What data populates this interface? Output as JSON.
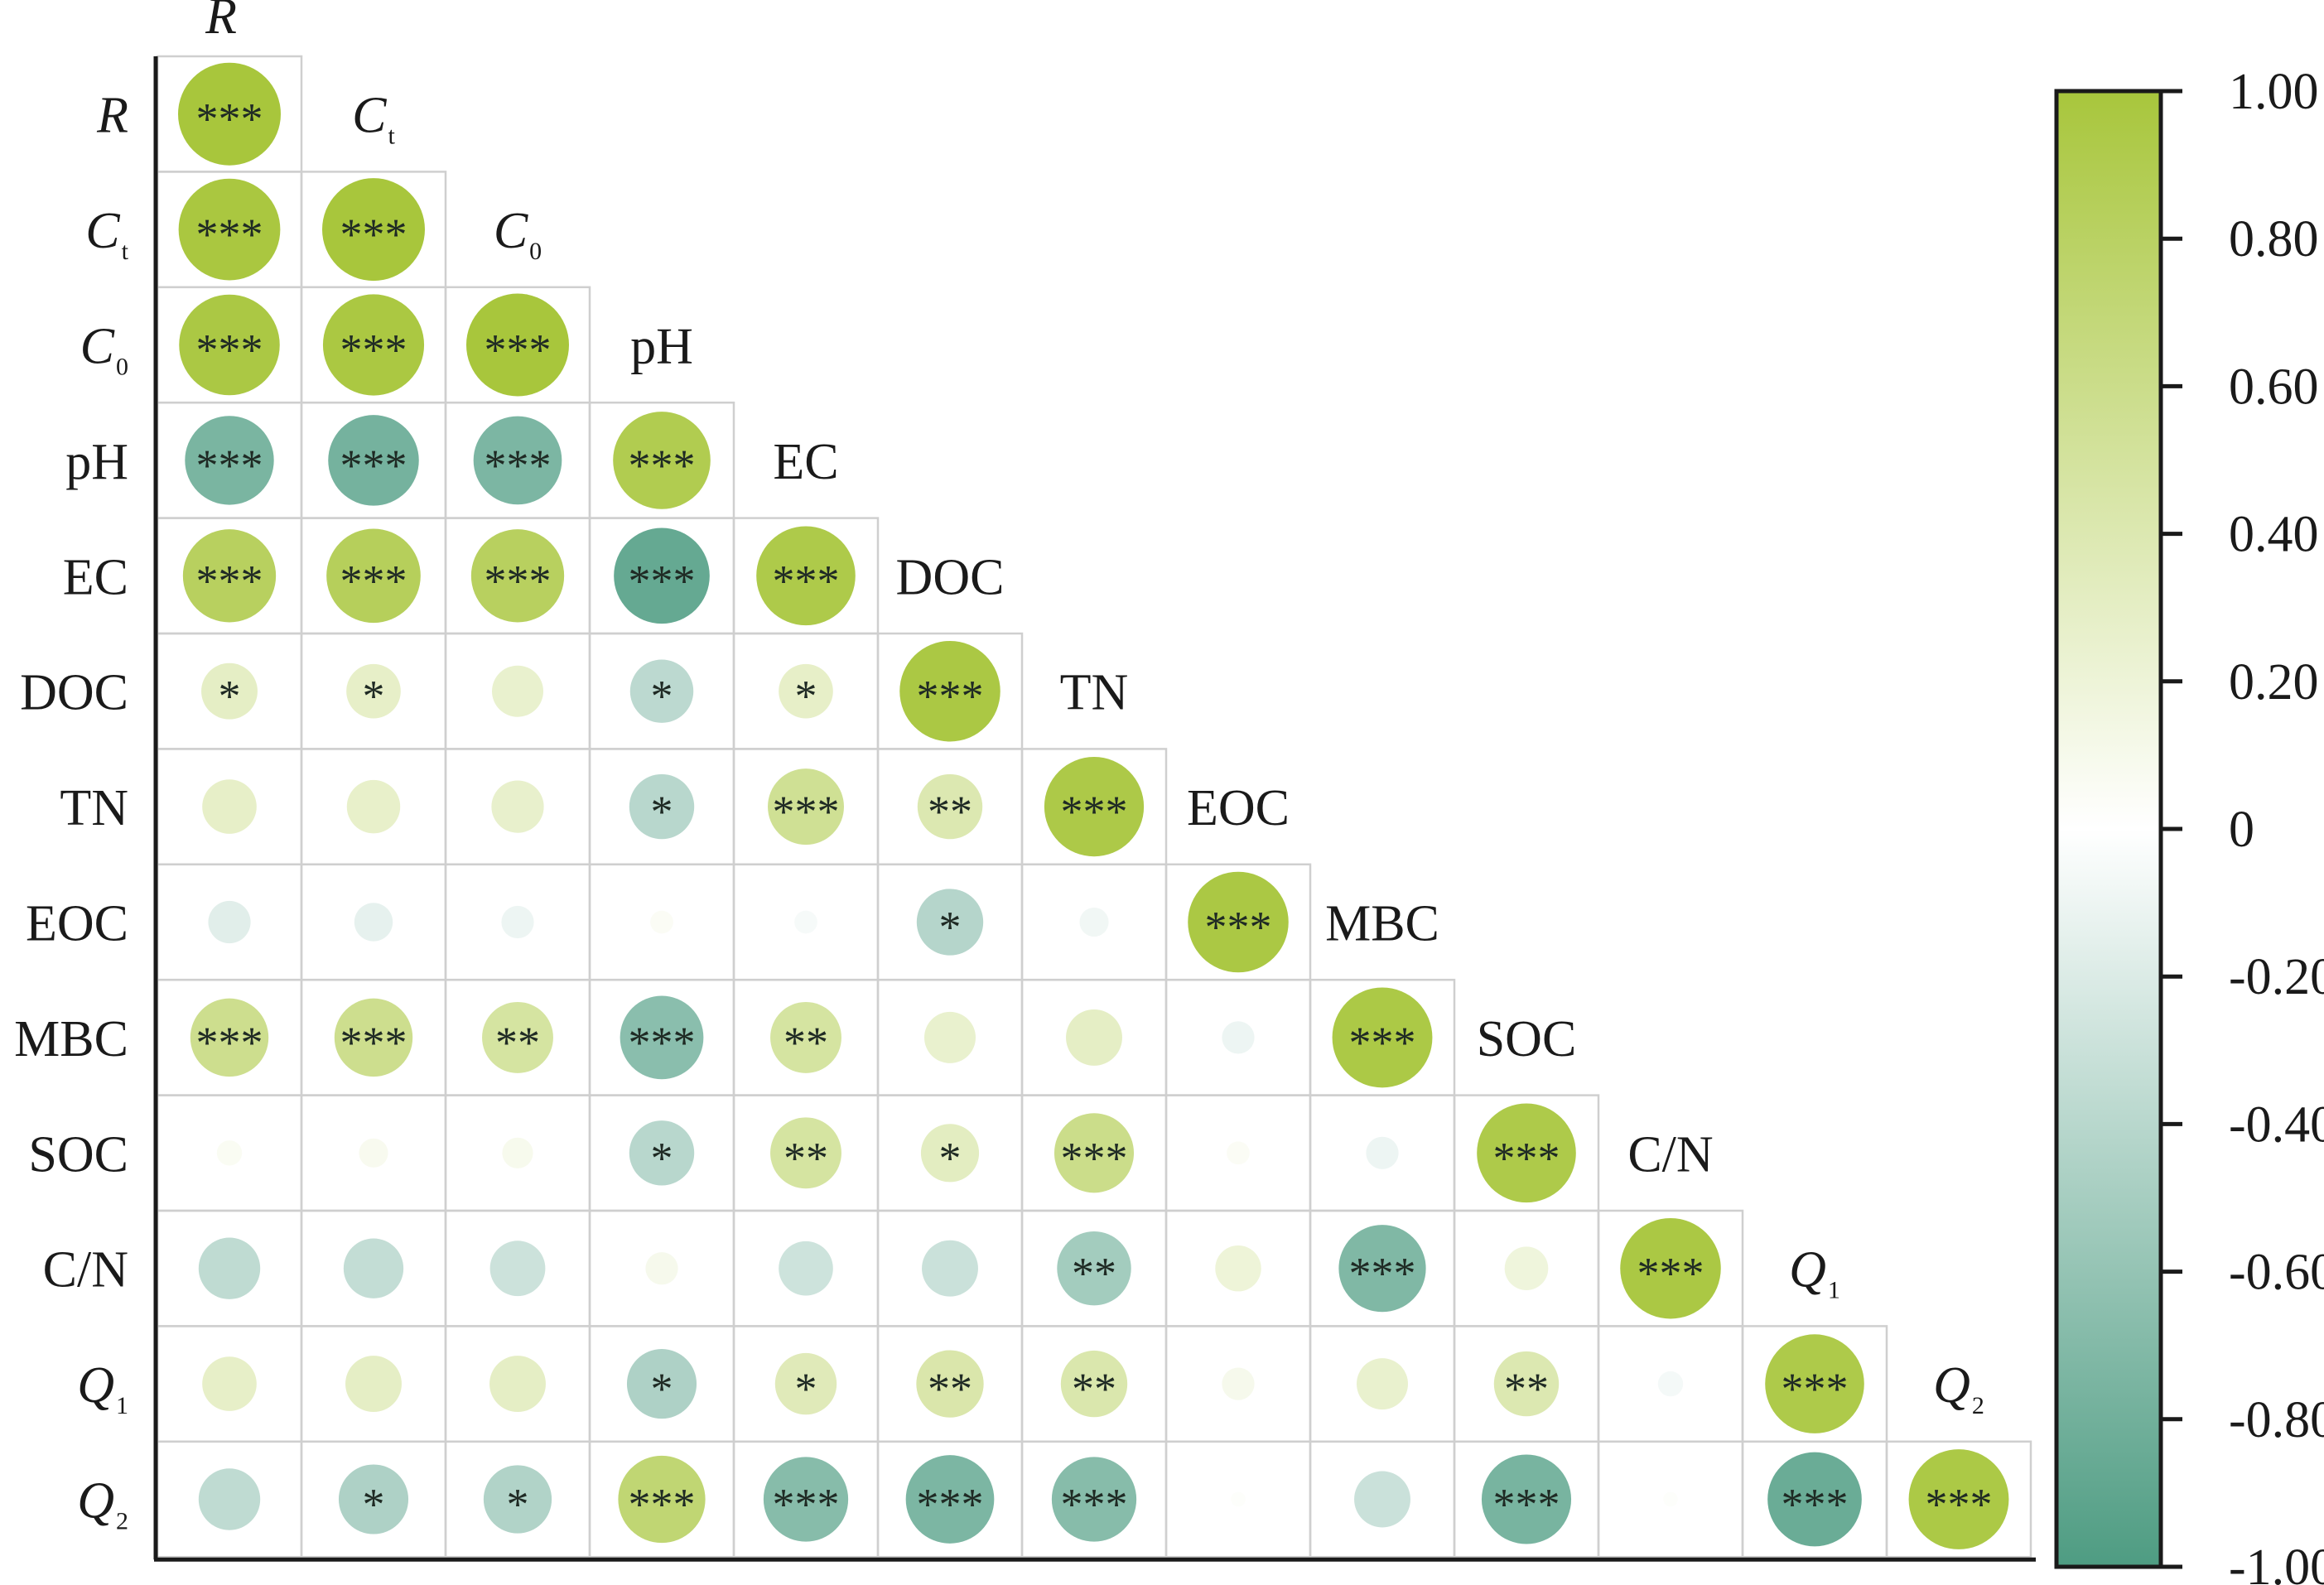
{
  "chart_data": {
    "type": "heatmap",
    "variables": [
      {
        "id": "R",
        "main": "R",
        "sub": "",
        "italic": true
      },
      {
        "id": "Ct",
        "main": "C",
        "sub": "t",
        "italic": true
      },
      {
        "id": "C0",
        "main": "C",
        "sub": "0",
        "italic": true
      },
      {
        "id": "pH",
        "main": "pH",
        "sub": "",
        "italic": false
      },
      {
        "id": "EC",
        "main": "EC",
        "sub": "",
        "italic": false
      },
      {
        "id": "DOC",
        "main": "DOC",
        "sub": "",
        "italic": false
      },
      {
        "id": "TN",
        "main": "TN",
        "sub": "",
        "italic": false
      },
      {
        "id": "EOC",
        "main": "EOC",
        "sub": "",
        "italic": false
      },
      {
        "id": "MBC",
        "main": "MBC",
        "sub": "",
        "italic": false
      },
      {
        "id": "SOC",
        "main": "SOC",
        "sub": "",
        "italic": false
      },
      {
        "id": "CN",
        "main": "C/N",
        "sub": "",
        "italic": false
      },
      {
        "id": "Q1",
        "main": "Q",
        "sub": "1",
        "italic": true
      },
      {
        "id": "Q2",
        "main": "Q",
        "sub": "2",
        "italic": true
      }
    ],
    "correlations": [
      [
        1.0
      ],
      [
        0.98,
        1.0
      ],
      [
        0.96,
        0.97,
        1.0
      ],
      [
        -0.75,
        -0.78,
        -0.74,
        0.9
      ],
      [
        0.82,
        0.84,
        0.82,
        -0.87,
        0.93
      ],
      [
        0.3,
        0.28,
        0.25,
        -0.38,
        0.28,
        0.96
      ],
      [
        0.28,
        0.27,
        0.26,
        -0.4,
        0.55,
        0.4,
        0.94
      ],
      [
        -0.17,
        -0.14,
        -0.1,
        0.05,
        -0.05,
        -0.42,
        -0.08,
        0.96
      ],
      [
        0.58,
        0.58,
        0.48,
        -0.66,
        0.48,
        0.25,
        0.3,
        -0.1,
        0.95
      ],
      [
        0.06,
        0.08,
        0.09,
        -0.4,
        0.48,
        0.32,
        0.6,
        0.05,
        -0.1,
        0.93
      ],
      [
        -0.36,
        -0.34,
        -0.29,
        0.1,
        -0.28,
        -0.3,
        -0.52,
        0.2,
        -0.72,
        0.18,
        0.96
      ],
      [
        0.28,
        0.3,
        0.3,
        -0.46,
        0.36,
        0.43,
        0.42,
        0.1,
        0.25,
        0.4,
        -0.06,
        0.93
      ],
      [
        -0.36,
        -0.46,
        -0.44,
        0.72,
        -0.68,
        -0.74,
        -0.68,
        0.02,
        -0.3,
        -0.76,
        0.02,
        -0.84,
        0.95
      ]
    ],
    "significance": [
      [
        "***"
      ],
      [
        "***",
        "***"
      ],
      [
        "***",
        "***",
        "***"
      ],
      [
        "***",
        "***",
        "***",
        "***"
      ],
      [
        "***",
        "***",
        "***",
        "***",
        "***"
      ],
      [
        "*",
        "*",
        "",
        "*",
        "*",
        "***"
      ],
      [
        "",
        "",
        "",
        "*",
        "***",
        "**",
        "***"
      ],
      [
        "",
        "",
        "",
        "",
        "",
        "*",
        "",
        "***"
      ],
      [
        "***",
        "***",
        "**",
        "***",
        "**",
        "",
        "",
        "",
        "***"
      ],
      [
        "",
        "",
        "",
        "*",
        "**",
        "*",
        "***",
        "",
        "",
        "***"
      ],
      [
        "",
        "",
        "",
        "",
        "",
        "",
        "**",
        "",
        "***",
        "",
        "***"
      ],
      [
        "",
        "",
        "",
        "*",
        "*",
        "**",
        "**",
        "",
        "",
        "**",
        "",
        "***"
      ],
      [
        "",
        "*",
        "*",
        "***",
        "***",
        "***",
        "***",
        "",
        "",
        "***",
        "",
        "***",
        "***"
      ]
    ],
    "colorbar": {
      "range": [
        -1.0,
        1.0
      ],
      "ticks": [
        "1.00",
        "0.80",
        "0.60",
        "0.40",
        "0.20",
        "0",
        "-0.20",
        "-0.40",
        "-0.60",
        "-0.80",
        "-1.00"
      ],
      "tick_values": [
        1.0,
        0.8,
        0.6,
        0.4,
        0.2,
        0.0,
        -0.2,
        -0.4,
        -0.6,
        -0.8,
        -1.0
      ],
      "positive_color": "#a8c63c",
      "mid_color": "#ffffff",
      "negative_color": "#4e9c82"
    },
    "grid_color": "#cfcfcf",
    "axis_color": "#1a1a1a"
  }
}
